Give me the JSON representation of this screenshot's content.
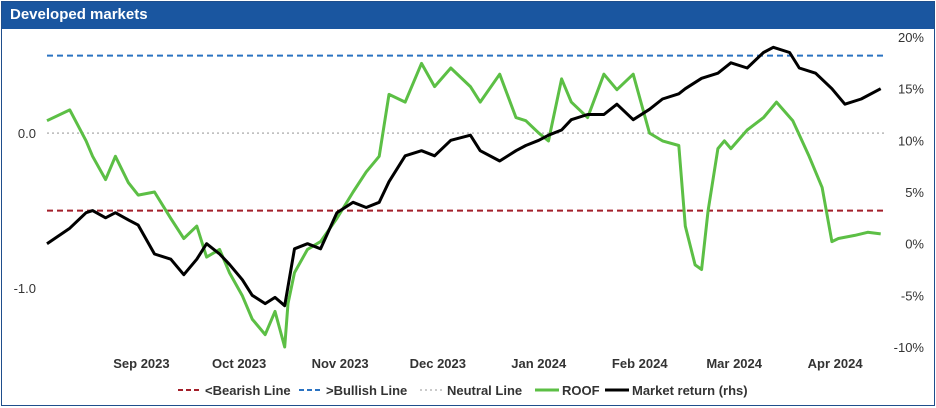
{
  "header": {
    "title": "Developed markets"
  },
  "chart_data": {
    "type": "line",
    "title": "Developed markets",
    "x_ticks": [
      "Sep 2023",
      "Oct 2023",
      "Nov 2023",
      "Dec 2023",
      "Jan 2024",
      "Feb 2024",
      "Mar 2024",
      "Apr 2024"
    ],
    "left_axis": {
      "ticks": [
        "0.0",
        "-1.0"
      ],
      "tick_values": [
        0.0,
        -1.0
      ],
      "ylim": [
        -1.38,
        0.62
      ]
    },
    "right_axis": {
      "ticks": [
        "20%",
        "15%",
        "10%",
        "5%",
        "0%",
        "-5%",
        "-10%"
      ],
      "tick_values": [
        20,
        15,
        10,
        5,
        0,
        -5,
        -10
      ],
      "ylim": [
        -10,
        20
      ],
      "unit": "%"
    },
    "reference_lines": [
      {
        "name": "<Bearish Line",
        "value": -0.5,
        "axis": "left",
        "color": "#a31f2a",
        "style": "dashed"
      },
      {
        "name": ">Bullish Line",
        "value": 0.5,
        "axis": "left",
        "color": "#2b73c2",
        "style": "dashed"
      },
      {
        "name": "Neutral Line",
        "value": 0.0,
        "axis": "left",
        "color": "#b8b8b8",
        "style": "dotted"
      }
    ],
    "series": [
      {
        "name": "ROOF",
        "axis": "left",
        "color": "#5cbf45",
        "x": [
          "2023-08-18",
          "2023-08-25",
          "2023-08-30",
          "2023-09-01",
          "2023-09-05",
          "2023-09-08",
          "2023-09-12",
          "2023-09-15",
          "2023-09-20",
          "2023-09-25",
          "2023-09-29",
          "2023-10-03",
          "2023-10-06",
          "2023-10-10",
          "2023-10-13",
          "2023-10-17",
          "2023-10-20",
          "2023-10-24",
          "2023-10-27",
          "2023-10-30",
          "2023-10-31",
          "2023-11-02",
          "2023-11-06",
          "2023-11-10",
          "2023-11-15",
          "2023-11-20",
          "2023-11-24",
          "2023-11-28",
          "2023-12-01",
          "2023-12-06",
          "2023-12-11",
          "2023-12-15",
          "2023-12-20",
          "2023-12-26",
          "2023-12-29",
          "2024-01-04",
          "2024-01-09",
          "2024-01-12",
          "2024-01-16",
          "2024-01-19",
          "2024-01-23",
          "2024-01-26",
          "2024-01-31",
          "2024-02-05",
          "2024-02-09",
          "2024-02-14",
          "2024-02-19",
          "2024-02-23",
          "2024-02-28",
          "2024-03-01",
          "2024-03-04",
          "2024-03-06",
          "2024-03-08",
          "2024-03-11",
          "2024-03-13",
          "2024-03-15",
          "2024-03-20",
          "2024-03-25",
          "2024-03-29",
          "2024-04-03",
          "2024-04-08",
          "2024-04-12",
          "2024-04-15",
          "2024-04-17",
          "2024-04-22",
          "2024-04-26",
          "2024-04-30"
        ],
        "values": [
          0.08,
          0.15,
          -0.05,
          -0.15,
          -0.3,
          -0.15,
          -0.32,
          -0.4,
          -0.38,
          -0.55,
          -0.68,
          -0.6,
          -0.8,
          -0.75,
          -0.9,
          -1.05,
          -1.2,
          -1.3,
          -1.15,
          -1.38,
          -1.1,
          -0.9,
          -0.75,
          -0.7,
          -0.55,
          -0.38,
          -0.25,
          -0.15,
          0.25,
          0.2,
          0.45,
          0.3,
          0.42,
          0.3,
          0.2,
          0.38,
          0.1,
          0.08,
          0.0,
          -0.05,
          0.35,
          0.2,
          0.1,
          0.38,
          0.28,
          0.38,
          0.0,
          -0.05,
          -0.08,
          -0.6,
          -0.85,
          -0.88,
          -0.5,
          -0.1,
          -0.05,
          -0.1,
          0.02,
          0.1,
          0.2,
          0.08,
          -0.15,
          -0.35,
          -0.7,
          -0.68,
          -0.66,
          -0.64,
          -0.65
        ]
      },
      {
        "name": "Market return (rhs)",
        "axis": "right",
        "color": "#000000",
        "x": [
          "2023-08-18",
          "2023-08-25",
          "2023-08-30",
          "2023-09-01",
          "2023-09-05",
          "2023-09-08",
          "2023-09-12",
          "2023-09-15",
          "2023-09-20",
          "2023-09-25",
          "2023-09-29",
          "2023-10-03",
          "2023-10-06",
          "2023-10-10",
          "2023-10-13",
          "2023-10-17",
          "2023-10-20",
          "2023-10-24",
          "2023-10-27",
          "2023-10-30",
          "2023-11-02",
          "2023-11-06",
          "2023-11-10",
          "2023-11-15",
          "2023-11-20",
          "2023-11-24",
          "2023-11-28",
          "2023-12-01",
          "2023-12-06",
          "2023-12-11",
          "2023-12-15",
          "2023-12-20",
          "2023-12-26",
          "2023-12-29",
          "2024-01-04",
          "2024-01-09",
          "2024-01-12",
          "2024-01-16",
          "2024-01-19",
          "2024-01-23",
          "2024-01-26",
          "2024-01-31",
          "2024-02-05",
          "2024-02-09",
          "2024-02-14",
          "2024-02-19",
          "2024-02-23",
          "2024-02-28",
          "2024-03-01",
          "2024-03-06",
          "2024-03-11",
          "2024-03-15",
          "2024-03-20",
          "2024-03-25",
          "2024-03-28",
          "2024-04-02",
          "2024-04-05",
          "2024-04-10",
          "2024-04-15",
          "2024-04-19",
          "2024-04-24",
          "2024-04-30"
        ],
        "values": [
          0.0,
          1.5,
          3.0,
          3.2,
          2.5,
          3.0,
          2.3,
          1.8,
          -1.0,
          -1.5,
          -3.0,
          -1.5,
          0.0,
          -1.0,
          -2.0,
          -3.5,
          -5.0,
          -5.8,
          -5.2,
          -6.0,
          -0.5,
          0.0,
          -0.5,
          3.0,
          4.0,
          3.5,
          4.0,
          6.0,
          8.5,
          9.0,
          8.5,
          10.0,
          10.5,
          9.0,
          8.0,
          9.0,
          9.5,
          10.0,
          10.5,
          11.0,
          12.0,
          12.5,
          12.5,
          13.5,
          12.0,
          13.0,
          14.0,
          14.5,
          15.0,
          16.0,
          16.5,
          17.5,
          17.0,
          18.5,
          19.0,
          18.5,
          17.0,
          16.5,
          15.0,
          13.5,
          14.0,
          15.0
        ]
      }
    ],
    "legend": {
      "position": "bottom"
    },
    "grid": false
  },
  "legend_labels": {
    "bearish": "<Bearish Line",
    "bullish": ">Bullish Line",
    "neutral": "Neutral Line",
    "roof": "ROOF",
    "market": "Market return (rhs)"
  }
}
